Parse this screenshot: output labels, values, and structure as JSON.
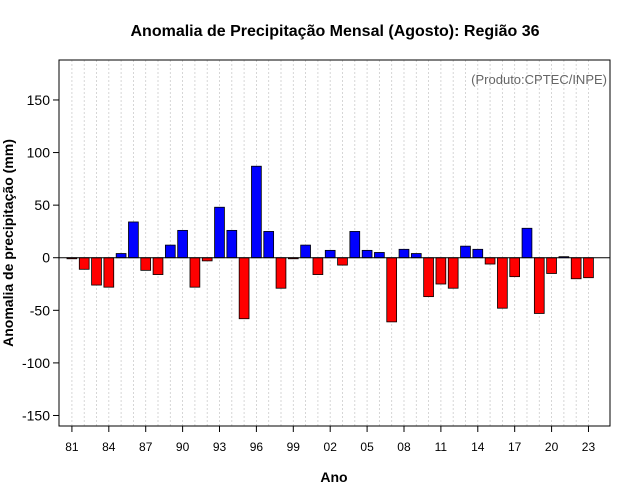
{
  "chart_data": {
    "type": "bar",
    "title": "Anomalia de Precipitação Mensal (Agosto): Região 36",
    "xlabel": "Ano",
    "ylabel": "Anomalia de precipitação (mm)",
    "credit": "(Produto:CPTEC/INPE)",
    "ylim": [
      -160,
      188
    ],
    "yticks": [
      -150,
      -100,
      -50,
      0,
      50,
      100,
      150
    ],
    "xtick_labels": [
      "81",
      "84",
      "87",
      "90",
      "93",
      "96",
      "99",
      "02",
      "05",
      "08",
      "11",
      "14",
      "17",
      "20",
      "23"
    ],
    "xtick_every": 3,
    "grid": true,
    "colors": {
      "positive": "#0000ff",
      "negative": "#ff0000",
      "grid": "#cccccc",
      "zero_line": "#000000"
    },
    "years": [
      1981,
      1982,
      1983,
      1984,
      1985,
      1986,
      1987,
      1988,
      1989,
      1990,
      1991,
      1992,
      1993,
      1994,
      1995,
      1996,
      1997,
      1998,
      1999,
      2000,
      2001,
      2002,
      2003,
      2004,
      2005,
      2006,
      2007,
      2008,
      2009,
      2010,
      2011,
      2012,
      2013,
      2014,
      2015,
      2016,
      2017,
      2018,
      2019,
      2020,
      2021,
      2022,
      2023
    ],
    "values": [
      -1,
      -11,
      -26,
      -28,
      4,
      34,
      -12,
      -16,
      12,
      26,
      -28,
      -3,
      48,
      26,
      -58,
      87,
      25,
      -29,
      -1,
      12,
      -16,
      7,
      -7,
      25,
      7,
      5,
      -61,
      8,
      4,
      -37,
      -25,
      -29,
      11,
      8,
      -6,
      -48,
      -18,
      28,
      -53,
      -15,
      1,
      -20,
      -19
    ]
  }
}
